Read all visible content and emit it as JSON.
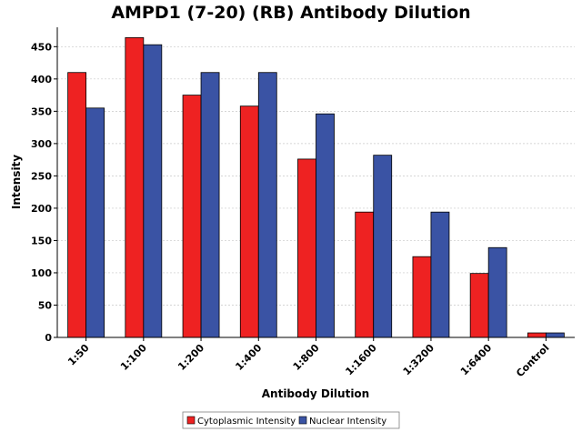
{
  "chart_data": {
    "type": "bar",
    "title": "AMPD1 (7-20) (RB) Antibody Dilution",
    "xlabel": "Antibody Dilution",
    "ylabel": "Intensity",
    "ylim": [
      0,
      480
    ],
    "yticks": [
      0,
      50,
      100,
      150,
      200,
      250,
      300,
      350,
      400,
      450
    ],
    "grid": true,
    "legend_position": "bottom-center",
    "categories": [
      "1:50",
      "1:100",
      "1:200",
      "1:400",
      "1:800",
      "1:1600",
      "1:3200",
      "1:6400",
      "Control"
    ],
    "series": [
      {
        "name": "Cytoplasmic Intensity",
        "color": "#ee2222",
        "values": [
          410,
          464,
          375,
          358,
          276,
          194,
          125,
          99,
          7
        ]
      },
      {
        "name": "Nuclear Intensity",
        "color": "#3a53a4",
        "values": [
          355,
          453,
          410,
          410,
          346,
          282,
          194,
          139,
          7
        ]
      }
    ]
  }
}
